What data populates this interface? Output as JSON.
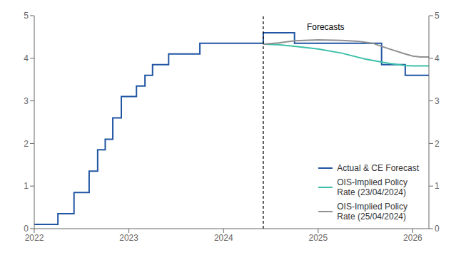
{
  "chart_data": {
    "type": "line",
    "xlim": [
      2022.0,
      2026.17
    ],
    "ylim": [
      0,
      5
    ],
    "xticks": [
      2022,
      2023,
      2024,
      2025,
      2026
    ],
    "yticks": [
      0,
      1,
      2,
      3,
      4,
      5
    ],
    "y2lim": [
      0,
      5
    ],
    "y2ticks": [
      0,
      1,
      2,
      3,
      4,
      5
    ],
    "grid": false,
    "legend": "lower right",
    "series": [
      {
        "name": "Actual & CE Forecast",
        "color": "#2155a3",
        "x": [
          2022.0,
          2022.25,
          2022.25,
          2022.42,
          2022.42,
          2022.58,
          2022.58,
          2022.67,
          2022.67,
          2022.75,
          2022.75,
          2022.83,
          2022.83,
          2022.92,
          2022.92,
          2023.0,
          2023.0,
          2023.08,
          2023.08,
          2023.17,
          2023.17,
          2023.25,
          2023.25,
          2023.42,
          2023.42,
          2023.58,
          2023.58,
          2023.75,
          2023.75,
          2023.92,
          2023.92,
          2024.08,
          2024.08,
          2024.42,
          2024.42,
          2024.75,
          2024.75,
          2025.25,
          2025.25,
          2025.67,
          2025.67,
          2025.92,
          2025.92,
          2026.08,
          2026.08,
          2026.17
        ],
        "values": [
          0.1,
          0.1,
          0.35,
          0.35,
          0.85,
          0.85,
          1.35,
          1.35,
          1.85,
          1.85,
          2.1,
          2.1,
          2.6,
          2.6,
          3.1,
          3.1,
          3.1,
          3.1,
          3.35,
          3.35,
          3.6,
          3.6,
          3.85,
          3.85,
          4.1,
          4.1,
          4.1,
          4.1,
          4.35,
          4.35,
          4.35,
          4.35,
          4.35,
          4.35,
          4.6,
          4.6,
          4.35,
          4.35,
          4.35,
          4.35,
          3.85,
          3.85,
          3.6,
          3.6,
          3.6,
          3.6
        ]
      },
      {
        "name": "OIS-Implied Policy\nRate (23/04/2024)",
        "color": "#3dbfaa",
        "x": [
          2024.42,
          2024.58,
          2024.75,
          2025.0,
          2025.25,
          2025.5,
          2025.75,
          2025.92,
          2026.0,
          2026.17
        ],
        "values": [
          4.33,
          4.32,
          4.28,
          4.22,
          4.12,
          3.98,
          3.88,
          3.83,
          3.82,
          3.82
        ]
      },
      {
        "name": "OIS-Implied Policy\nRate (25/04/2024)",
        "color": "#909090",
        "x": [
          2024.42,
          2024.58,
          2024.75,
          2025.0,
          2025.25,
          2025.42,
          2025.58,
          2025.75,
          2025.92,
          2026.0,
          2026.08,
          2026.17
        ],
        "values": [
          4.33,
          4.36,
          4.41,
          4.43,
          4.42,
          4.4,
          4.35,
          4.22,
          4.1,
          4.05,
          4.03,
          4.03
        ]
      }
    ],
    "annotations": [
      {
        "type": "vline",
        "x": 2024.42,
        "line_style": "dashed",
        "color": "#000000"
      },
      {
        "text": "Forecasts",
        "x": 2024.85,
        "y": 4.88
      }
    ]
  }
}
